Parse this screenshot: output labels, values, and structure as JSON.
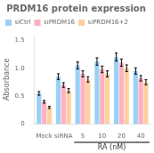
{
  "chart_data": {
    "type": "bar",
    "title": "PRDM16 protein expression",
    "categories": [
      "Mock",
      "siRNA",
      "5",
      "10",
      "20",
      "40"
    ],
    "ylabel": "Absorbance",
    "series": [
      {
        "name": "siCtrl",
        "values": [
          0.55,
          0.85,
          1.05,
          1.12,
          1.2,
          0.95
        ],
        "errors": [
          0.033,
          0.051,
          0.063,
          0.0672,
          0.072,
          0.057
        ]
      },
      {
        "name": "siPRDM16",
        "values": [
          0.4,
          0.7,
          0.9,
          0.98,
          1.1,
          0.82
        ],
        "errors": [
          0.024,
          0.042,
          0.054,
          0.0588,
          0.066,
          0.0492
        ]
      },
      {
        "name": "siPRDM16+2",
        "values": [
          0.3,
          0.6,
          0.8,
          0.9,
          1.0,
          0.75
        ],
        "errors": [
          0.018,
          0.036,
          0.048,
          0.054,
          0.06,
          0.045
        ]
      }
    ],
    "ylim": [
      0,
      1.6
    ],
    "yticks": [
      0,
      0.5,
      {
        "value": 1,
        "label": "1.0"
      },
      1.5
    ],
    "grid": false,
    "legend": "upper left",
    "annotations": [
      {
        "text": "RA (nM)",
        "from": "5",
        "to": "40"
      }
    ]
  }
}
